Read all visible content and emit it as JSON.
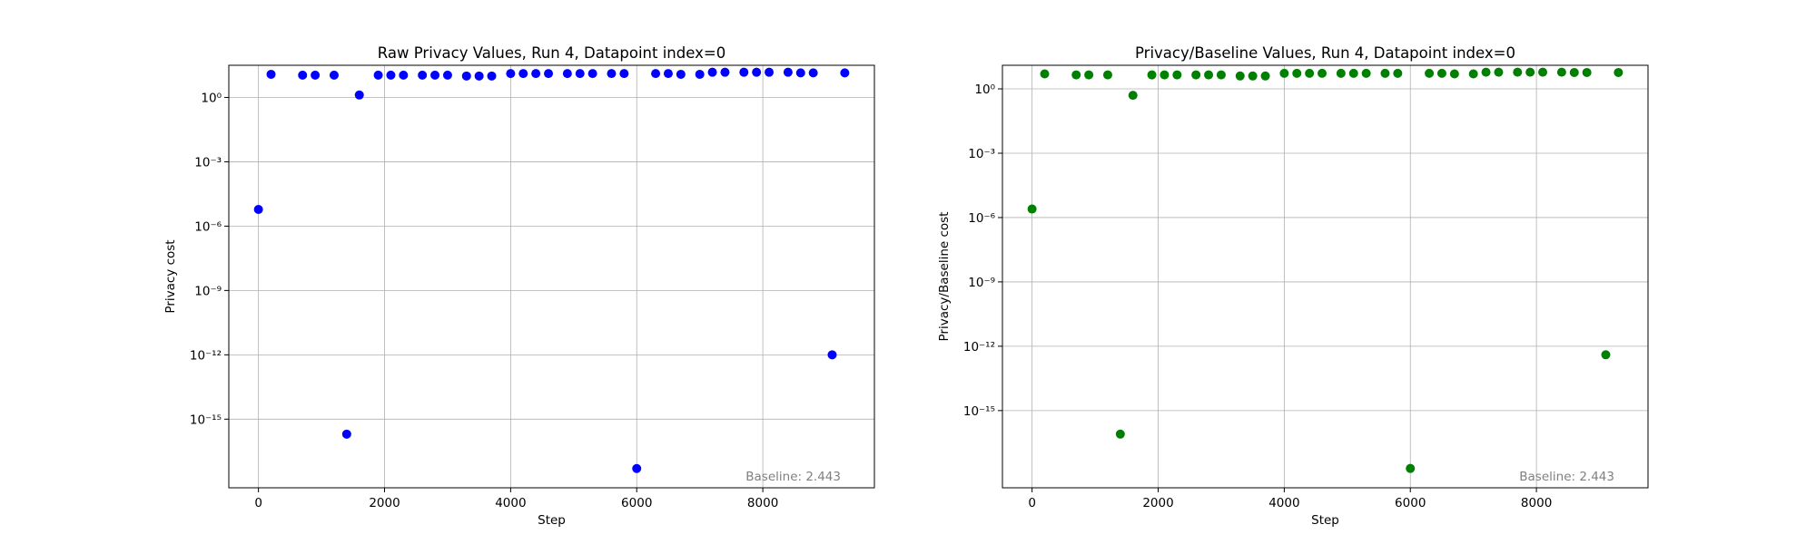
{
  "chart_data": [
    {
      "type": "scatter",
      "title": "Raw Privacy Values, Run 4, Datapoint index=0",
      "xlabel": "Step",
      "ylabel": "Privacy cost",
      "yscale": "log",
      "xlim": [
        -470,
        9770
      ],
      "ylim_exp": [
        -18.2,
        1.5
      ],
      "xticks": [
        0,
        2000,
        4000,
        6000,
        8000
      ],
      "yticks_exp": [
        0,
        -3,
        -6,
        -9,
        -12,
        -15
      ],
      "grid": true,
      "color": "#0000ff",
      "annotation": "Baseline: 2.443",
      "annotation_position": "bottom-right",
      "series": [
        {
          "x": [
            0,
            200,
            700,
            900,
            1200,
            1400,
            1600,
            1900,
            2100,
            2300,
            2600,
            2800,
            3000,
            3300,
            3500,
            3700,
            4000,
            4200,
            4400,
            4600,
            4900,
            5100,
            5300,
            5600,
            5800,
            6000,
            6300,
            6500,
            6700,
            7000,
            7200,
            7400,
            7700,
            7900,
            8100,
            8400,
            8600,
            8800,
            9100,
            9300
          ],
          "y": [
            6e-06,
            12,
            11,
            11,
            11,
            2e-16,
            1.3,
            11,
            11,
            11,
            11,
            11,
            11,
            10,
            10,
            10,
            13,
            13,
            13,
            13,
            13,
            13,
            13,
            13,
            13,
            5e-18,
            13,
            13,
            12,
            12,
            15,
            15,
            15,
            15,
            15,
            15,
            14,
            14,
            1e-12,
            14
          ]
        }
      ]
    },
    {
      "type": "scatter",
      "title": "Privacy/Baseline Values, Run 4, Datapoint index=0",
      "xlabel": "Step",
      "ylabel": "Privacy/Baseline cost",
      "yscale": "log",
      "xlim": [
        -470,
        9770
      ],
      "ylim_exp": [
        -18.6,
        1.1
      ],
      "xticks": [
        0,
        2000,
        4000,
        6000,
        8000
      ],
      "yticks_exp": [
        0,
        -3,
        -6,
        -9,
        -12,
        -15
      ],
      "grid": true,
      "color": "#008000",
      "annotation": "Baseline: 2.443",
      "annotation_position": "bottom-right",
      "series": [
        {
          "x": [
            0,
            200,
            700,
            900,
            1200,
            1400,
            1600,
            1900,
            2100,
            2300,
            2600,
            2800,
            3000,
            3300,
            3500,
            3700,
            4000,
            4200,
            4400,
            4600,
            4900,
            5100,
            5300,
            5600,
            5800,
            6000,
            6300,
            6500,
            6700,
            7000,
            7200,
            7400,
            7700,
            7900,
            8100,
            8400,
            8600,
            8800,
            9100,
            9300
          ],
          "y": [
            2.5e-06,
            5,
            4.5,
            4.5,
            4.5,
            8e-17,
            0.5,
            4.5,
            4.5,
            4.5,
            4.5,
            4.5,
            4.5,
            4,
            4,
            4,
            5.3,
            5.3,
            5.3,
            5.3,
            5.3,
            5.3,
            5.3,
            5.3,
            5.3,
            2e-18,
            5.3,
            5.3,
            5,
            5,
            6,
            6,
            6,
            6,
            6,
            6,
            5.8,
            5.8,
            4e-13,
            5.8
          ]
        }
      ]
    }
  ]
}
